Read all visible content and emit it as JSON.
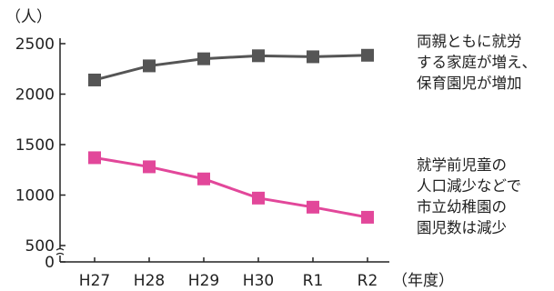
{
  "chart_data": {
    "type": "line",
    "ylabel": "（人）",
    "xunit": "（年度）",
    "categories": [
      "H27",
      "H28",
      "H29",
      "H30",
      "R1",
      "R2"
    ],
    "yticks": [
      0,
      500,
      1000,
      1500,
      2000,
      2500
    ],
    "ylim": [
      0,
      2500
    ],
    "axis_break": true,
    "series": [
      {
        "color": "#555555",
        "marker": "square",
        "values": [
          2140,
          2280,
          2350,
          2380,
          2370,
          2385
        ]
      },
      {
        "color": "#e2479a",
        "marker": "square",
        "values": [
          1370,
          1280,
          1160,
          970,
          880,
          780
        ]
      }
    ],
    "annotations": [
      {
        "lines": [
          "両親ともに就労",
          "する家庭が増え、",
          "保育園児が増加"
        ]
      },
      {
        "lines": [
          "就学前児童の",
          "人口減少などで",
          "市立幼稚園の",
          "園児数は減少"
        ]
      }
    ]
  }
}
